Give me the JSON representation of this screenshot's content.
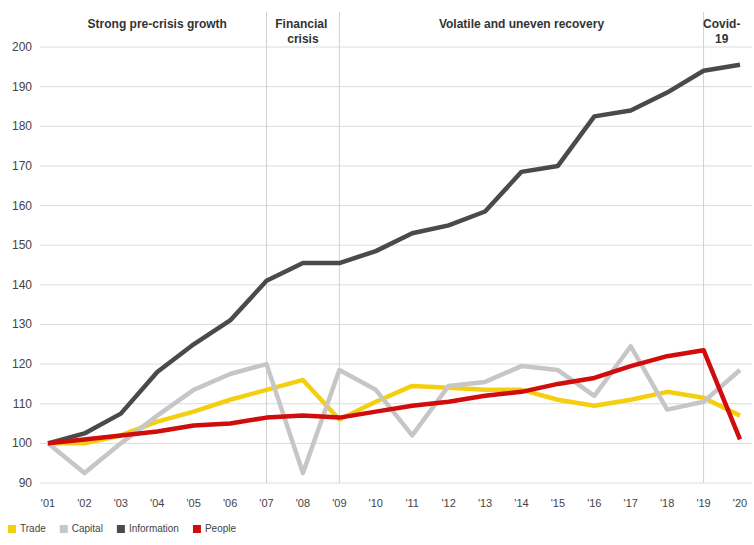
{
  "chart_data": {
    "type": "line",
    "categories": [
      "'01",
      "'02",
      "'03",
      "'04",
      "'05",
      "'06",
      "'07",
      "'08",
      "'09",
      "'10",
      "'11",
      "'12",
      "'13",
      "'14",
      "'15",
      "'16",
      "'17",
      "'18",
      "'19",
      "'20"
    ],
    "series": [
      {
        "name": "Trade",
        "color": "#f5cf0f",
        "values": [
          100,
          100,
          102,
          105.5,
          108,
          111,
          113.5,
          116,
          106,
          110.5,
          114.5,
          114,
          113.5,
          113.5,
          111,
          109.5,
          111,
          113,
          111.5,
          107
        ]
      },
      {
        "name": "Capital",
        "color": "#c6c6c6",
        "values": [
          100,
          92.5,
          100,
          107,
          113.5,
          117.5,
          120,
          92.5,
          118.5,
          113.5,
          102,
          114.5,
          115.5,
          119.5,
          118.5,
          112,
          124.5,
          108.5,
          110.5,
          118.5
        ]
      },
      {
        "name": "Information",
        "color": "#4a4a4a",
        "values": [
          100,
          102.5,
          107.5,
          118,
          125,
          131,
          141,
          145.5,
          145.5,
          148.5,
          153,
          155,
          158.5,
          168.5,
          170,
          182.5,
          184,
          188.5,
          194,
          195.5
        ]
      },
      {
        "name": "People",
        "color": "#d00c0c",
        "values": [
          100,
          101,
          102,
          103,
          104.5,
          105,
          106.5,
          107,
          106.5,
          108,
          109.5,
          110.5,
          112,
          113,
          115,
          116.5,
          119.5,
          122,
          123.5,
          101
        ]
      }
    ],
    "annotations": [
      {
        "text": "Strong pre-crisis growth",
        "from": "'01",
        "to": "'07"
      },
      {
        "text": "Financial crisis",
        "from": "'07",
        "to": "'09"
      },
      {
        "text": "Volatile and uneven recovery",
        "from": "'09",
        "to": "'19"
      },
      {
        "text": "Covid-19",
        "from": "'19",
        "to": "'20"
      }
    ],
    "ylim": [
      90,
      200
    ],
    "yticks": [
      90,
      100,
      110,
      120,
      130,
      140,
      150,
      160,
      170,
      180,
      190,
      200
    ],
    "grid": true,
    "legend": "bottom"
  }
}
